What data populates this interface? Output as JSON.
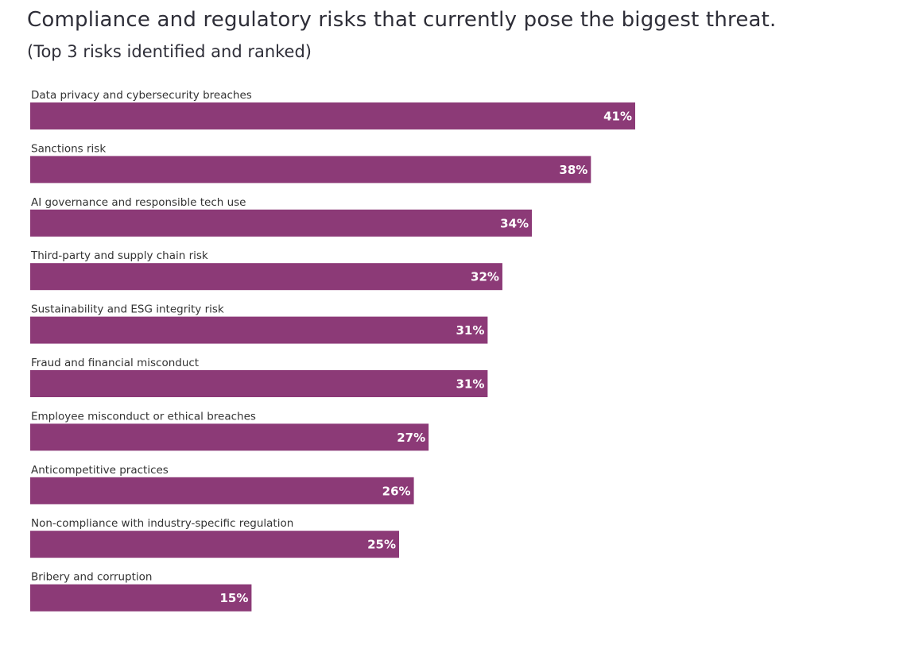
{
  "chart_data": {
    "type": "bar",
    "orientation": "horizontal",
    "title": "Compliance and regulatory risks that currently pose the biggest threat.",
    "subtitle": "(Top 3 risks identified and ranked)",
    "categories": [
      "Data privacy and cybersecurity breaches",
      "Sanctions risk",
      "AI governance and responsible tech use",
      "Third-party and supply chain risk",
      "Sustainability and ESG integrity risk",
      "Fraud and financial misconduct",
      "Employee misconduct or ethical breaches",
      "Anticompetitive practices",
      "Non-compliance with industry-specific regulation",
      "Bribery and corruption"
    ],
    "values": [
      41,
      38,
      34,
      32,
      31,
      31,
      27,
      26,
      25,
      15
    ],
    "value_labels": [
      "41%",
      "38%",
      "34%",
      "32%",
      "31%",
      "31%",
      "27%",
      "26%",
      "25%",
      "15%"
    ],
    "unit": "%",
    "grid": false,
    "legend": "none",
    "bar_color": "#8c3a77"
  }
}
